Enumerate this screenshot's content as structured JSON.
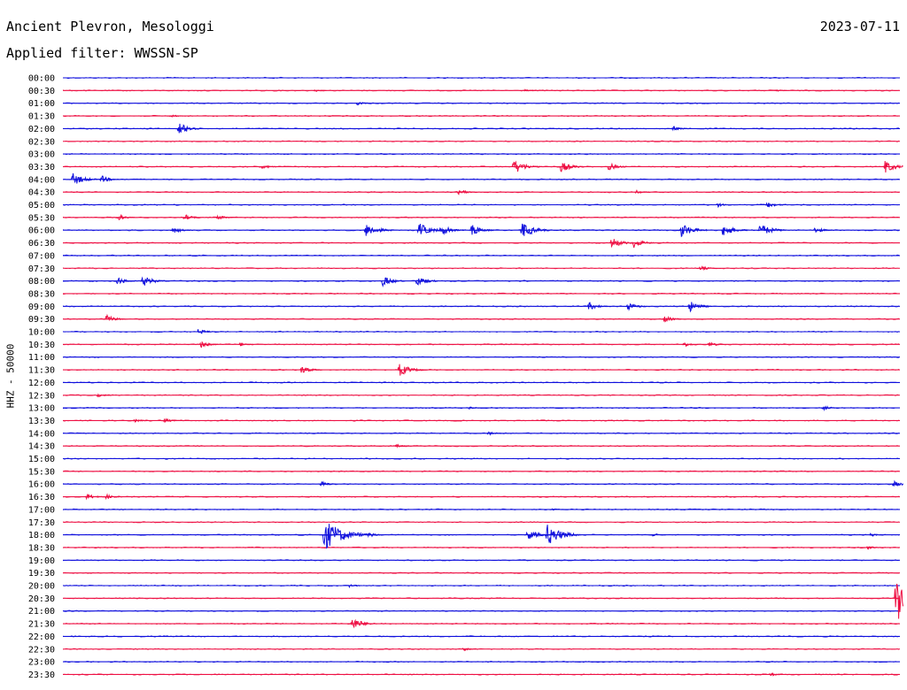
{
  "header": {
    "station": "Ancient Plevron, Mesologgi",
    "date": "2023-07-11",
    "filter_label": "Applied filter: WWSSN-SP"
  },
  "axis": {
    "channel_label": "HHZ - 50000"
  },
  "colors": {
    "trace_a": "#1111dd",
    "trace_b": "#ee1144",
    "background": "#ffffff",
    "text": "#000000"
  },
  "chart_data": {
    "type": "line",
    "title": "",
    "ylabel": "HHZ - 50000",
    "rows": [
      "00:00",
      "00:30",
      "01:00",
      "01:30",
      "02:00",
      "02:30",
      "03:00",
      "03:30",
      "04:00",
      "04:30",
      "05:00",
      "05:30",
      "06:00",
      "06:30",
      "07:00",
      "07:30",
      "08:00",
      "08:30",
      "09:00",
      "09:30",
      "10:00",
      "10:30",
      "11:00",
      "11:30",
      "12:00",
      "12:30",
      "13:00",
      "13:30",
      "14:00",
      "14:30",
      "15:00",
      "15:30",
      "16:00",
      "16:30",
      "17:00",
      "17:30",
      "18:00",
      "18:30",
      "19:00",
      "19:30",
      "20:00",
      "20:30",
      "21:00",
      "21:30",
      "22:00",
      "22:30",
      "23:00",
      "23:30"
    ],
    "row_minutes": 30,
    "row_colors": [
      "trace_a",
      "trace_b"
    ],
    "events": [
      {
        "row": "00:30",
        "minute": 9,
        "amp": 2
      },
      {
        "row": "00:30",
        "minute": 16.5,
        "amp": 2
      },
      {
        "row": "00:30",
        "minute": 25.5,
        "amp": 2
      },
      {
        "row": "01:00",
        "minute": 10.5,
        "amp": 3
      },
      {
        "row": "01:30",
        "minute": 3.8,
        "amp": 3
      },
      {
        "row": "02:00",
        "minute": 4.1,
        "amp": 9
      },
      {
        "row": "02:00",
        "minute": 21.8,
        "amp": 4
      },
      {
        "row": "03:30",
        "minute": 7.1,
        "amp": 4
      },
      {
        "row": "03:30",
        "minute": 16.1,
        "amp": 10
      },
      {
        "row": "03:30",
        "minute": 17.8,
        "amp": 8
      },
      {
        "row": "03:30",
        "minute": 19.5,
        "amp": 6
      },
      {
        "row": "03:30",
        "minute": 29.4,
        "amp": 9
      },
      {
        "row": "04:00",
        "minute": 0.3,
        "amp": 9
      },
      {
        "row": "04:00",
        "minute": 1.3,
        "amp": 6
      },
      {
        "row": "04:30",
        "minute": 14.1,
        "amp": 5
      },
      {
        "row": "04:30",
        "minute": 20.5,
        "amp": 3
      },
      {
        "row": "05:00",
        "minute": 23.4,
        "amp": 4
      },
      {
        "row": "05:00",
        "minute": 25.2,
        "amp": 5
      },
      {
        "row": "05:30",
        "minute": 1.9,
        "amp": 5
      },
      {
        "row": "05:30",
        "minute": 4.3,
        "amp": 5
      },
      {
        "row": "05:30",
        "minute": 5.5,
        "amp": 4
      },
      {
        "row": "06:00",
        "minute": 3.9,
        "amp": 5
      },
      {
        "row": "06:00",
        "minute": 10.8,
        "amp": 10
      },
      {
        "row": "06:00",
        "minute": 12.7,
        "amp": 10
      },
      {
        "row": "06:00",
        "minute": 13.5,
        "amp": 8
      },
      {
        "row": "06:00",
        "minute": 14.6,
        "amp": 8
      },
      {
        "row": "06:00",
        "minute": 16.4,
        "amp": 11
      },
      {
        "row": "06:00",
        "minute": 22.1,
        "amp": 10
      },
      {
        "row": "06:00",
        "minute": 23.6,
        "amp": 9
      },
      {
        "row": "06:00",
        "minute": 24.9,
        "amp": 10
      },
      {
        "row": "06:00",
        "minute": 26.9,
        "amp": 5
      },
      {
        "row": "06:30",
        "minute": 19.6,
        "amp": 8
      },
      {
        "row": "06:30",
        "minute": 20.4,
        "amp": 7
      },
      {
        "row": "07:30",
        "minute": 22.8,
        "amp": 4
      },
      {
        "row": "08:00",
        "minute": 1.9,
        "amp": 6
      },
      {
        "row": "08:00",
        "minute": 2.8,
        "amp": 8
      },
      {
        "row": "08:00",
        "minute": 11.4,
        "amp": 8
      },
      {
        "row": "08:00",
        "minute": 12.6,
        "amp": 8
      },
      {
        "row": "09:00",
        "minute": 18.8,
        "amp": 6
      },
      {
        "row": "09:00",
        "minute": 20.2,
        "amp": 6
      },
      {
        "row": "09:00",
        "minute": 22.4,
        "amp": 8
      },
      {
        "row": "09:30",
        "minute": 1.5,
        "amp": 6
      },
      {
        "row": "09:30",
        "minute": 21.5,
        "amp": 5
      },
      {
        "row": "10:00",
        "minute": 4.8,
        "amp": 5
      },
      {
        "row": "10:30",
        "minute": 4.9,
        "amp": 5
      },
      {
        "row": "10:30",
        "minute": 6.3,
        "amp": 3
      },
      {
        "row": "10:30",
        "minute": 22.2,
        "amp": 4
      },
      {
        "row": "10:30",
        "minute": 23.1,
        "amp": 4
      },
      {
        "row": "11:30",
        "minute": 8.5,
        "amp": 6
      },
      {
        "row": "11:30",
        "minute": 12.0,
        "amp": 9
      },
      {
        "row": "12:30",
        "minute": 1.2,
        "amp": 3
      },
      {
        "row": "13:00",
        "minute": 14.5,
        "amp": 2
      },
      {
        "row": "13:00",
        "minute": 27.2,
        "amp": 4
      },
      {
        "row": "13:30",
        "minute": 2.5,
        "amp": 3
      },
      {
        "row": "13:30",
        "minute": 3.6,
        "amp": 4
      },
      {
        "row": "14:00",
        "minute": 15.2,
        "amp": 3
      },
      {
        "row": "14:30",
        "minute": 11.9,
        "amp": 3
      },
      {
        "row": "16:00",
        "minute": 9.2,
        "amp": 4
      },
      {
        "row": "16:00",
        "minute": 29.7,
        "amp": 5
      },
      {
        "row": "16:30",
        "minute": 0.8,
        "amp": 5
      },
      {
        "row": "16:30",
        "minute": 1.5,
        "amp": 4
      },
      {
        "row": "17:00",
        "minute": 17.5,
        "amp": 2
      },
      {
        "row": "18:00",
        "minute": 9.3,
        "amp": 20
      },
      {
        "row": "18:00",
        "minute": 10.9,
        "amp": 4
      },
      {
        "row": "18:00",
        "minute": 16.6,
        "amp": 8
      },
      {
        "row": "18:00",
        "minute": 17.3,
        "amp": 14
      },
      {
        "row": "18:00",
        "minute": 21.1,
        "amp": 3
      },
      {
        "row": "18:00",
        "minute": 28.9,
        "amp": 3
      },
      {
        "row": "18:30",
        "minute": 28.8,
        "amp": 3
      },
      {
        "row": "20:00",
        "minute": 10.2,
        "amp": 3
      },
      {
        "row": "20:30",
        "minute": 29.8,
        "amp": 36
      },
      {
        "row": "21:30",
        "minute": 10.3,
        "amp": 9
      },
      {
        "row": "22:30",
        "minute": 14.3,
        "amp": 3
      },
      {
        "row": "23:30",
        "minute": 25.3,
        "amp": 3
      }
    ]
  }
}
